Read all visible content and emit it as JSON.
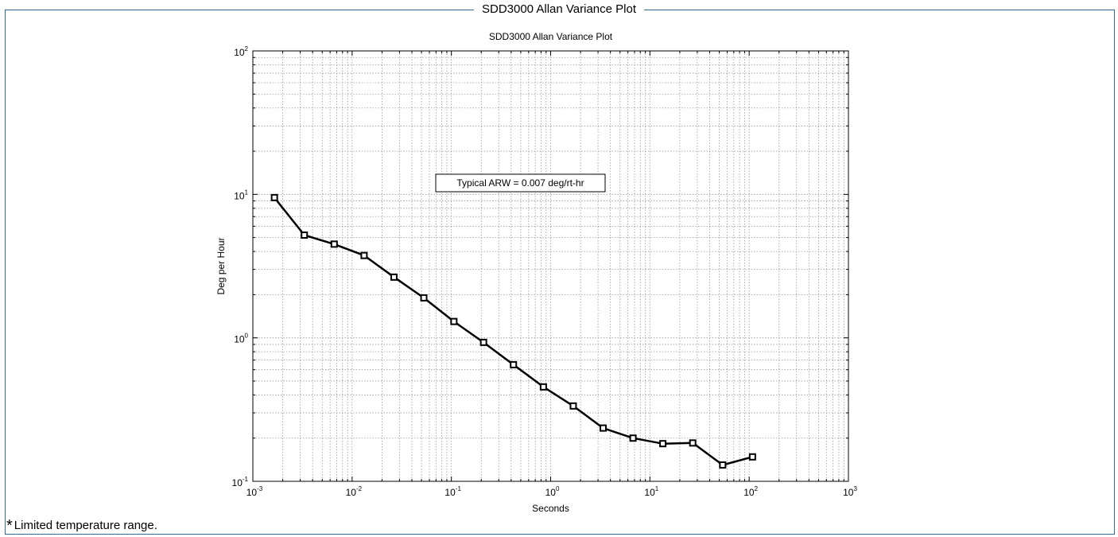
{
  "frame": {
    "title": "SDD3000 Allan Variance Plot"
  },
  "footnote": {
    "star": "*",
    "text": "Limited temperature range."
  },
  "colors": {
    "frame_border": "#2f6d98",
    "line": "#000000",
    "grid": "#9a9a9a"
  },
  "chart_data": {
    "type": "line",
    "title": "SDD3000 Allan Variance Plot",
    "xlabel": "Seconds",
    "ylabel": "Deg per Hour",
    "xscale": "log",
    "yscale": "log",
    "xlim": [
      0.001,
      1000
    ],
    "ylim": [
      0.1,
      100
    ],
    "grid": true,
    "marker": "square",
    "x_ticks": [
      {
        "value": 0.001,
        "base": "10",
        "exp": "-3"
      },
      {
        "value": 0.01,
        "base": "10",
        "exp": "-2"
      },
      {
        "value": 0.1,
        "base": "10",
        "exp": "-1"
      },
      {
        "value": 1,
        "base": "10",
        "exp": "0"
      },
      {
        "value": 10,
        "base": "10",
        "exp": "1"
      },
      {
        "value": 100,
        "base": "10",
        "exp": "2"
      },
      {
        "value": 1000,
        "base": "10",
        "exp": "3"
      }
    ],
    "y_ticks": [
      {
        "value": 0.1,
        "base": "10",
        "exp": "-1"
      },
      {
        "value": 1,
        "base": "10",
        "exp": "0"
      },
      {
        "value": 10,
        "base": "10",
        "exp": "1"
      },
      {
        "value": 100,
        "base": "10",
        "exp": "2"
      }
    ],
    "annotation": "Typical ARW = 0.007 deg/rt-hr",
    "series": [
      {
        "x": [
          0.00165,
          0.0033,
          0.0066,
          0.0132,
          0.0264,
          0.0528,
          0.106,
          0.211,
          0.422,
          0.845,
          1.69,
          3.38,
          6.76,
          13.5,
          27.0,
          54.1,
          108
        ],
        "values": [
          9.5,
          5.2,
          4.5,
          3.75,
          2.65,
          1.9,
          1.3,
          0.93,
          0.65,
          0.455,
          0.335,
          0.235,
          0.2,
          0.183,
          0.185,
          0.13,
          0.148
        ]
      }
    ]
  }
}
